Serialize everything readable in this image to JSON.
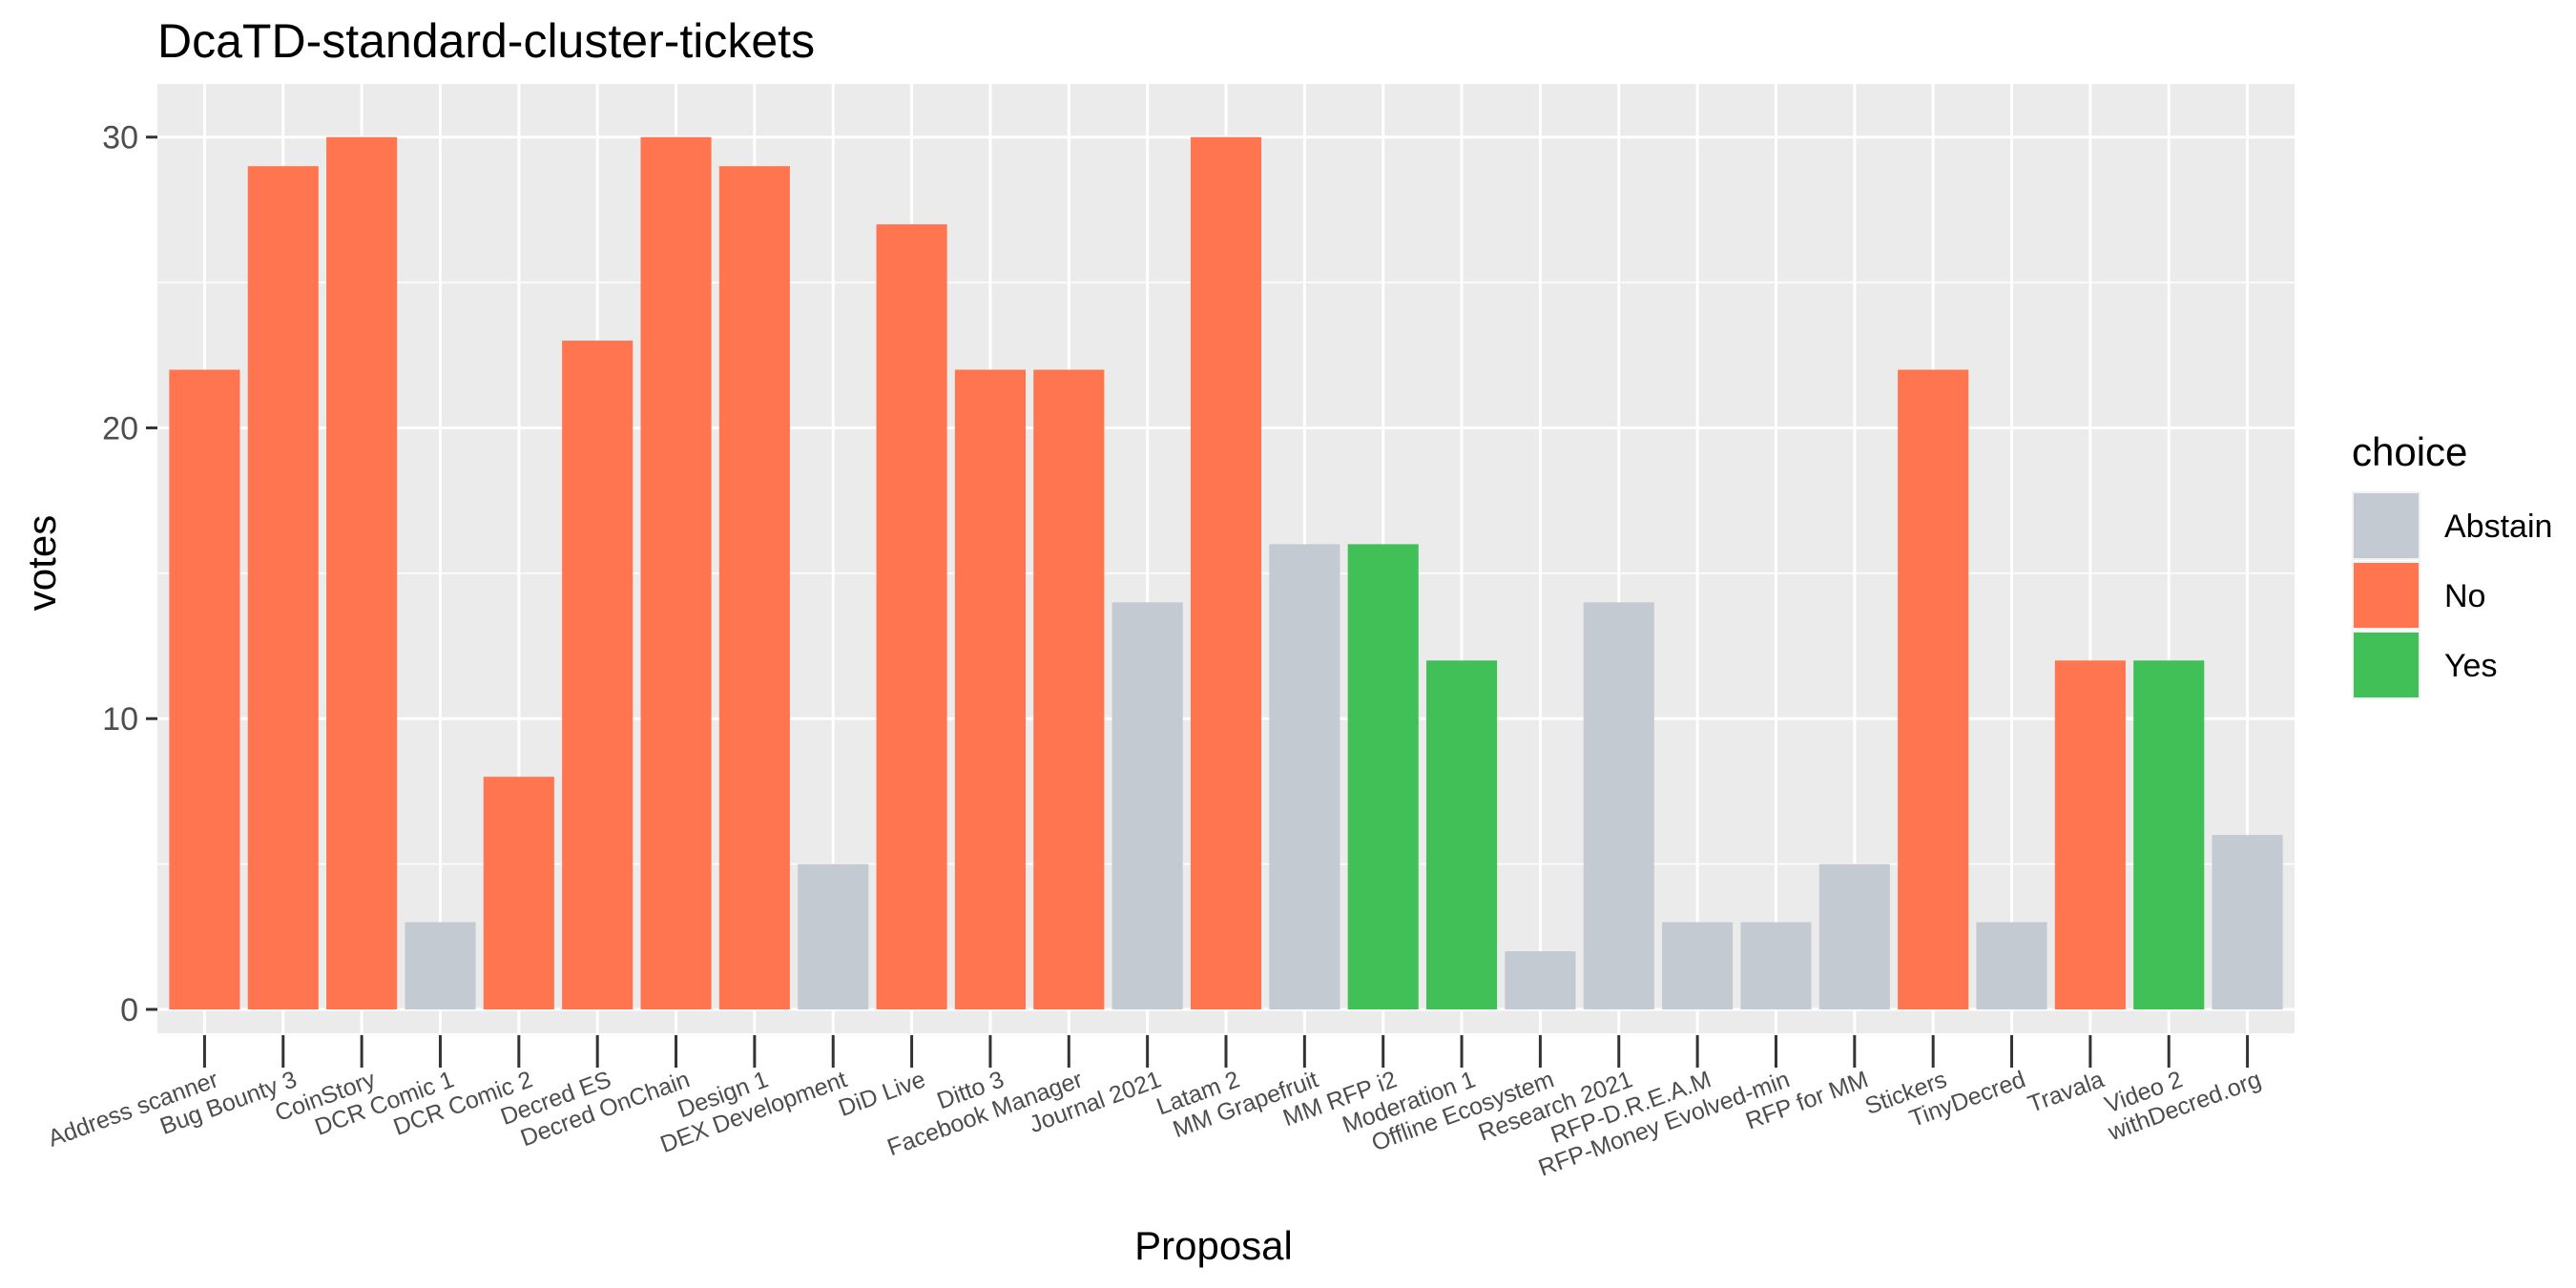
{
  "chart_data": {
    "type": "bar",
    "title": "DcaTD-standard-cluster-tickets",
    "xlabel": "Proposal",
    "ylabel": "votes",
    "ylim": [
      0,
      31.5
    ],
    "yticks": [
      0,
      10,
      20,
      30
    ],
    "grid": true,
    "legend_position": "right",
    "legend_title": "choice",
    "legend": [
      {
        "name": "Abstain",
        "color": "#C4CAD2"
      },
      {
        "name": "No",
        "color": "#FF7550"
      },
      {
        "name": "Yes",
        "color": "#40C057"
      }
    ],
    "categories": [
      "Address scanner",
      "Bug Bounty 3",
      "CoinStory",
      "DCR Comic 1",
      "DCR Comic 2",
      "Decred ES",
      "Decred OnChain",
      "Design 1",
      "DEX Development",
      "DiD Live",
      "Ditto 3",
      "Facebook Manager",
      "Journal 2021",
      "Latam 2",
      "MM Grapefruit",
      "MM RFP i2",
      "Moderation 1",
      "Offline Ecosystem",
      "Research 2021",
      "RFP-D.R.E.A.M",
      "RFP-Money Evolved-min",
      "RFP for MM",
      "Stickers",
      "TinyDecred",
      "Travala",
      "Video 2",
      "withDecred.org"
    ],
    "bars": [
      {
        "value": 22,
        "choice": "No"
      },
      {
        "value": 29,
        "choice": "No"
      },
      {
        "value": 30,
        "choice": "No"
      },
      {
        "value": 3,
        "choice": "Abstain"
      },
      {
        "value": 8,
        "choice": "No"
      },
      {
        "value": 23,
        "choice": "No"
      },
      {
        "value": 30,
        "choice": "No"
      },
      {
        "value": 29,
        "choice": "No"
      },
      {
        "value": 5,
        "choice": "Abstain"
      },
      {
        "value": 27,
        "choice": "No"
      },
      {
        "value": 22,
        "choice": "No"
      },
      {
        "value": 22,
        "choice": "No"
      },
      {
        "value": 14,
        "choice": "Abstain"
      },
      {
        "value": 30,
        "choice": "No"
      },
      {
        "value": 16,
        "choice": "Abstain"
      },
      {
        "value": 16,
        "choice": "Yes"
      },
      {
        "value": 12,
        "choice": "Yes"
      },
      {
        "value": 2,
        "choice": "Abstain"
      },
      {
        "value": 14,
        "choice": "Abstain"
      },
      {
        "value": 3,
        "choice": "Abstain"
      },
      {
        "value": 3,
        "choice": "Abstain"
      },
      {
        "value": 5,
        "choice": "Abstain"
      },
      {
        "value": 22,
        "choice": "No"
      },
      {
        "value": 3,
        "choice": "Abstain"
      },
      {
        "value": 12,
        "choice": "No"
      },
      {
        "value": 12,
        "choice": "Yes"
      },
      {
        "value": 6,
        "choice": "Abstain"
      }
    ]
  }
}
